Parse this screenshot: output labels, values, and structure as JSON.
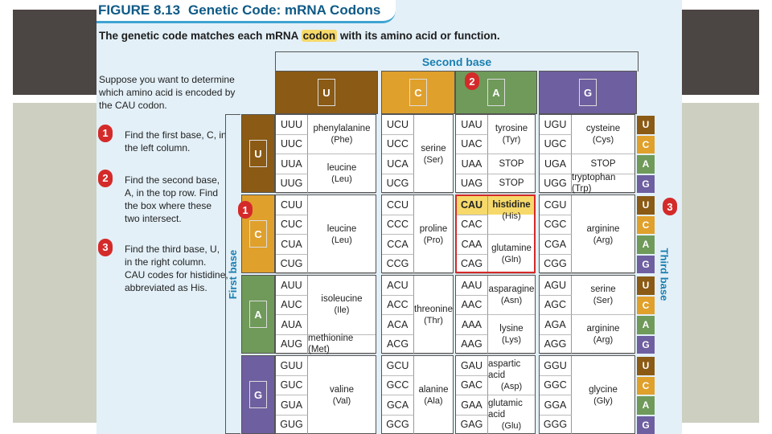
{
  "figure": {
    "number": "FIGURE 8.13",
    "title": "Genetic Code: mRNA Codons",
    "subtitle_pre": "The genetic code matches each mRNA ",
    "subtitle_hl": "codon",
    "subtitle_post": " with its amino acid or function."
  },
  "instructions": {
    "intro": "Suppose you want to determine which amino acid is encoded by the CAU codon.",
    "steps": [
      {
        "badge": "1",
        "text": "Find the first base, C, in the left column."
      },
      {
        "badge": "2",
        "text": "Find the second base, A, in the top row. Find the box where these two intersect."
      },
      {
        "badge": "3",
        "text": "Find the third base, U, in the right column. CAU codes for histidine, abbreviated as His."
      }
    ]
  },
  "labels": {
    "second_base": "Second base",
    "first_base": "First base",
    "third_base": "Third base",
    "markers": [
      "1",
      "2",
      "3"
    ]
  },
  "colors": {
    "U": "#8b5a14",
    "C": "#e0a02c",
    "A": "#6f9a5a",
    "G": "#6e5fa0"
  },
  "bases": [
    "U",
    "C",
    "A",
    "G"
  ],
  "table": [
    {
      "first": "U",
      "cols": [
        {
          "codons": [
            "UUU",
            "UUC",
            "UUA",
            "UUG"
          ],
          "aa": [
            {
              "name": "phenylalanine",
              "abbr": "(Phe)",
              "rows": 2
            },
            {
              "name": "leucine",
              "abbr": "(Leu)",
              "rows": 2
            }
          ]
        },
        {
          "codons": [
            "UCU",
            "UCC",
            "UCA",
            "UCG"
          ],
          "aa": [
            {
              "name": "serine",
              "abbr": "(Ser)",
              "rows": 4
            }
          ]
        },
        {
          "codons": [
            "UAU",
            "UAC",
            "UAA",
            "UAG"
          ],
          "aa": [
            {
              "name": "tyrosine",
              "abbr": "(Tyr)",
              "rows": 2
            },
            {
              "name": "STOP",
              "abbr": "",
              "rows": 1
            },
            {
              "name": "STOP",
              "abbr": "",
              "rows": 1
            }
          ]
        },
        {
          "codons": [
            "UGU",
            "UGC",
            "UGA",
            "UGG"
          ],
          "aa": [
            {
              "name": "cysteine",
              "abbr": "(Cys)",
              "rows": 2
            },
            {
              "name": "STOP",
              "abbr": "",
              "rows": 1
            },
            {
              "name": "tryptophan (Trp)",
              "abbr": "",
              "rows": 1
            }
          ]
        }
      ]
    },
    {
      "first": "C",
      "cols": [
        {
          "codons": [
            "CUU",
            "CUC",
            "CUA",
            "CUG"
          ],
          "aa": [
            {
              "name": "leucine",
              "abbr": "(Leu)",
              "rows": 4
            }
          ]
        },
        {
          "codons": [
            "CCU",
            "CCC",
            "CCA",
            "CCG"
          ],
          "aa": [
            {
              "name": "proline",
              "abbr": "(Pro)",
              "rows": 4
            }
          ]
        },
        {
          "codons": [
            "CAU",
            "CAC",
            "CAA",
            "CAG"
          ],
          "aa": [
            {
              "name": "histidine",
              "abbr": "(His)",
              "rows": 2
            },
            {
              "name": "glutamine",
              "abbr": "(Gln)",
              "rows": 2
            }
          ]
        },
        {
          "codons": [
            "CGU",
            "CGC",
            "CGA",
            "CGG"
          ],
          "aa": [
            {
              "name": "arginine",
              "abbr": "(Arg)",
              "rows": 4
            }
          ]
        }
      ]
    },
    {
      "first": "A",
      "cols": [
        {
          "codons": [
            "AUU",
            "AUC",
            "AUA",
            "AUG"
          ],
          "aa": [
            {
              "name": "isoleucine",
              "abbr": "(Ile)",
              "rows": 3
            },
            {
              "name": "methionine (Met)",
              "abbr": "",
              "rows": 1
            }
          ]
        },
        {
          "codons": [
            "ACU",
            "ACC",
            "ACA",
            "ACG"
          ],
          "aa": [
            {
              "name": "threonine",
              "abbr": "(Thr)",
              "rows": 4
            }
          ]
        },
        {
          "codons": [
            "AAU",
            "AAC",
            "AAA",
            "AAG"
          ],
          "aa": [
            {
              "name": "asparagine",
              "abbr": "(Asn)",
              "rows": 2
            },
            {
              "name": "lysine",
              "abbr": "(Lys)",
              "rows": 2
            }
          ]
        },
        {
          "codons": [
            "AGU",
            "AGC",
            "AGA",
            "AGG"
          ],
          "aa": [
            {
              "name": "serine",
              "abbr": "(Ser)",
              "rows": 2
            },
            {
              "name": "arginine",
              "abbr": "(Arg)",
              "rows": 2
            }
          ]
        }
      ]
    },
    {
      "first": "G",
      "cols": [
        {
          "codons": [
            "GUU",
            "GUC",
            "GUA",
            "GUG"
          ],
          "aa": [
            {
              "name": "valine",
              "abbr": "(Val)",
              "rows": 4
            }
          ]
        },
        {
          "codons": [
            "GCU",
            "GCC",
            "GCA",
            "GCG"
          ],
          "aa": [
            {
              "name": "alanine",
              "abbr": "(Ala)",
              "rows": 4
            }
          ]
        },
        {
          "codons": [
            "GAU",
            "GAC",
            "GAA",
            "GAG"
          ],
          "aa": [
            {
              "name": "aspartic acid",
              "abbr": "(Asp)",
              "rows": 2
            },
            {
              "name": "glutamic acid",
              "abbr": "(Glu)",
              "rows": 2
            }
          ]
        },
        {
          "codons": [
            "GGU",
            "GGC",
            "GGA",
            "GGG"
          ],
          "aa": [
            {
              "name": "glycine",
              "abbr": "(Gly)",
              "rows": 4
            }
          ]
        }
      ]
    }
  ]
}
